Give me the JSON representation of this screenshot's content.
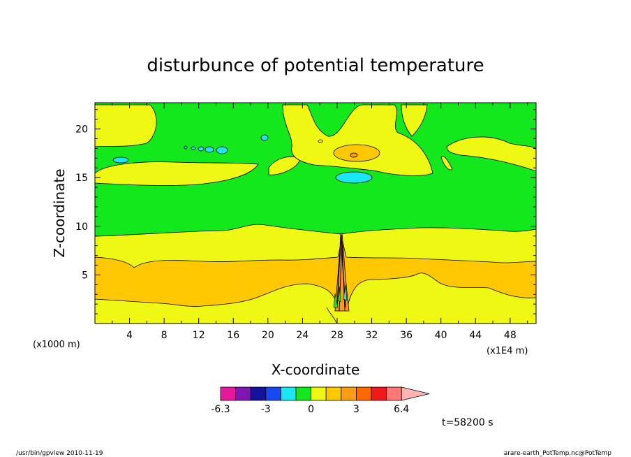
{
  "chart_data": {
    "type": "heatmap",
    "title": "disturbunce of potential temperature",
    "xlabel": "X-coordinate",
    "ylabel": "Z-coordinate",
    "x_unit_left": "(x1000 m)",
    "x_unit_right": "(x1E4 m)",
    "xlim": [
      0,
      51
    ],
    "ylim": [
      0,
      22.7
    ],
    "xticks": [
      4,
      8,
      12,
      16,
      20,
      24,
      28,
      32,
      36,
      40,
      44,
      48
    ],
    "yticks": [
      5,
      10,
      15,
      20
    ],
    "time_label": "t=58200 s",
    "colorbar": {
      "colors": [
        "#e6199b",
        "#7f16b4",
        "#12139a",
        "#1748f0",
        "#1ae6f5",
        "#12e81b",
        "#eef812",
        "#ffc800",
        "#ff9c14",
        "#ff6a00",
        "#f01919",
        "#ff7878",
        "#ffb4b4"
      ],
      "tick_labels": [
        "-6.3",
        "-3",
        "0",
        "3",
        "6.4"
      ]
    },
    "bands": [
      {
        "name": "warm lower layer (orange)",
        "z_bottom": 2.3,
        "z_top": 6.8
      },
      {
        "name": "yellow layer",
        "z_bottom": 0,
        "z_top": 9.2
      },
      {
        "name": "upper green region",
        "z_bottom": 9.2,
        "z_top": 22.7
      }
    ]
  },
  "footer": {
    "left": "/usr/bin/gpview  2010-11-19",
    "right": "arare-earth_PotTemp.nc@PotTemp"
  }
}
